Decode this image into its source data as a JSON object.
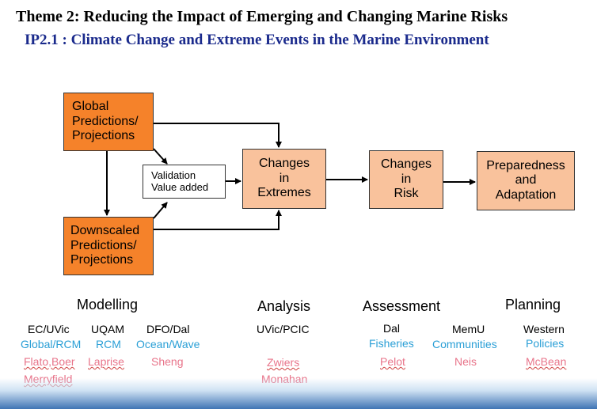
{
  "header": {
    "theme": "Theme 2: Reducing the Impact of Emerging and Changing Marine Risks",
    "project": "IP2.1 : Climate Change and Extreme Events in the Marine Environment"
  },
  "diagram": {
    "global": [
      "Global",
      "Predictions/",
      "Projections"
    ],
    "downscaled": [
      "Downscaled",
      "Predictions/",
      "Projections"
    ],
    "validation": [
      "Validation",
      "Value added"
    ],
    "extremes": [
      "Changes",
      "in",
      "Extremes"
    ],
    "risk": [
      "Changes",
      "in",
      "Risk"
    ],
    "preparedness": [
      "Preparedness",
      "and",
      "Adaptation"
    ]
  },
  "columns": {
    "modelling": {
      "heading": "Modelling",
      "inst": [
        "EC/UVic",
        "UQAM",
        "DFO/Dal"
      ],
      "topic": [
        "Global/RCM",
        "RCM",
        "Ocean/Wave"
      ],
      "names": [
        "Flato,Boer",
        "Laprise",
        "Sheng",
        "Merryfield"
      ]
    },
    "analysis": {
      "heading": "Analysis",
      "inst": "UVic/PCIC",
      "names": [
        "Zwiers",
        "Monahan"
      ]
    },
    "assessment": {
      "heading": "Assessment",
      "inst": [
        "Dal",
        "MemU"
      ],
      "topic": [
        "Fisheries",
        "Communities"
      ],
      "names": [
        "Pelot",
        "Neis"
      ]
    },
    "planning": {
      "heading": "Planning",
      "inst": "Western",
      "topic": "Policies",
      "names": [
        "McBean"
      ]
    }
  }
}
